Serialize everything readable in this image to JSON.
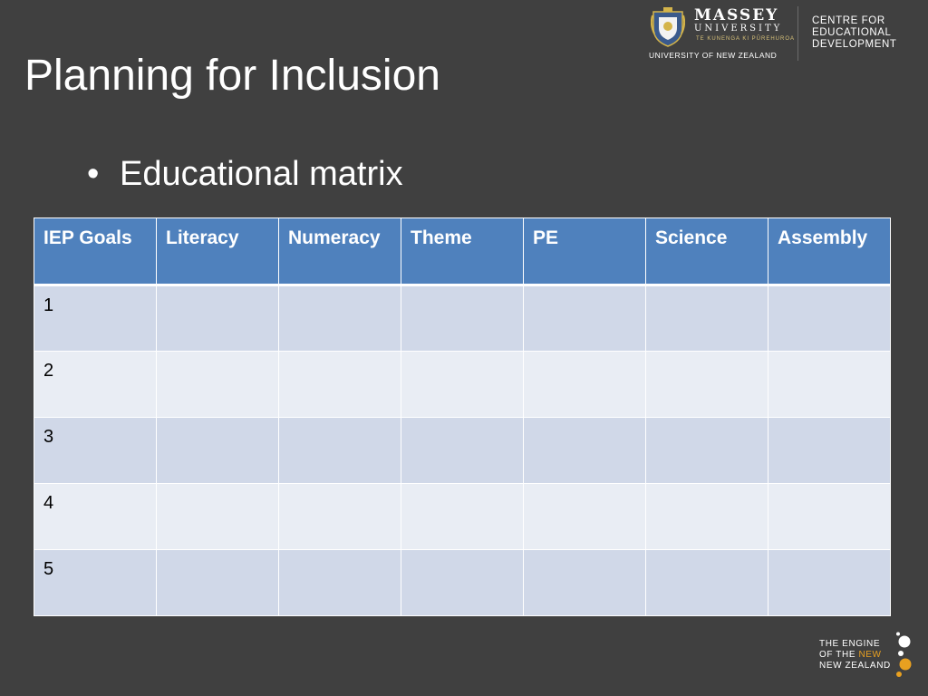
{
  "slide": {
    "title": "Planning for Inclusion",
    "bullet": "Educational matrix"
  },
  "logo": {
    "name": "MASSEY",
    "sub": "UNIVERSITY",
    "motto": "TE KUNENGA KI PŪREHUROA",
    "country": "UNIVERSITY OF NEW ZEALAND",
    "centre_lines": [
      "CENTRE FOR",
      "EDUCATIONAL",
      "DEVELOPMENT"
    ],
    "crest_icon": "university-crest-icon"
  },
  "table": {
    "headers": [
      "IEP Goals",
      "Literacy",
      "Numeracy",
      "Theme",
      "PE",
      "Science",
      "Assembly"
    ],
    "rows": [
      [
        "1",
        "",
        "",
        "",
        "",
        "",
        ""
      ],
      [
        "2",
        "",
        "",
        "",
        "",
        "",
        ""
      ],
      [
        "3",
        "",
        "",
        "",
        "",
        "",
        ""
      ],
      [
        "4",
        "",
        "",
        "",
        "",
        "",
        ""
      ],
      [
        "5",
        "",
        "",
        "",
        "",
        "",
        ""
      ]
    ]
  },
  "engine": {
    "line1": "THE ENGINE",
    "line2_prefix": "OF THE ",
    "line2_new": "NEW",
    "line3": "NEW ZEALAND",
    "accent_color": "#e8a020"
  },
  "colors": {
    "background": "#404040",
    "header_fill": "#4f81bd",
    "row_odd": "#d0d8e8",
    "row_even": "#e9edf4"
  }
}
